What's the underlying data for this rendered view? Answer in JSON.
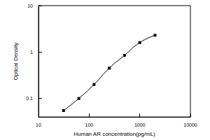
{
  "chart_data": {
    "type": "line",
    "x_label": "Human AR concentration(pg/mL)",
    "y_label": "Optical Density",
    "x": [
      31.25,
      62.5,
      125,
      250,
      500,
      1000,
      2000
    ],
    "values": [
      0.055,
      0.1,
      0.2,
      0.45,
      0.85,
      1.6,
      2.3
    ],
    "color": "#000000",
    "marker": "square",
    "line_style": "solid",
    "log": true,
    "xlim": [
      10,
      10000
    ],
    "xticks": [
      10,
      100,
      1000,
      10000
    ],
    "ylim": [
      0.04,
      10
    ],
    "yticks": [
      0.1,
      1,
      10
    ],
    "grid": false
  }
}
